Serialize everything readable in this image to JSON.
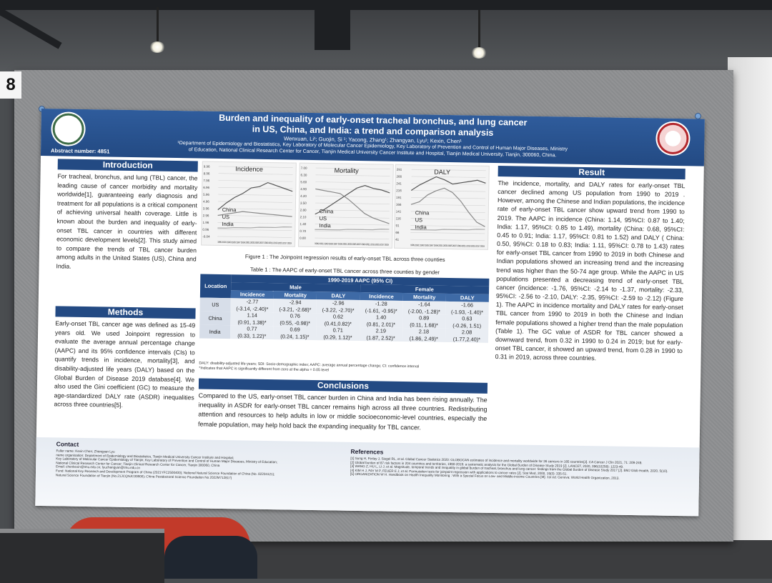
{
  "board": {
    "number": "8"
  },
  "poster": {
    "title_line1": "Burden and inequality of early-onset tracheal bronchus, and lung cancer",
    "title_line2": "in US, China, and India: a trend and comparison analysis",
    "authors": "Wenxuan, Li¹;  Guojin, Si ¹; Yacong, Zhang¹; Zhangyan, Lyu¹; Kexin, Chen¹",
    "affiliation_line1": "¹Department of Epidemiology and Biostatistics, Key Laboratory of  Molecular Cancer Epidemiology, Key Laboratory of Prevention and Control of  Human Major Diseases, Ministry",
    "affiliation_line2": "of Education, National Clinical Research Center for Cancer, Tianjin Medical University Cancer Institute and Hospital, Tianjin Medical University, Tianjin, 300060, China.",
    "abstract_number": "Abstract number: 4851",
    "introduction": {
      "heading": "Introduction",
      "text": "For tracheal, bronchus, and lung (TBL) cancer, the leading cause of cancer morbidity and mortality worldwide[1], guaranteeing early diagnosis and treatment for all populations is a critical component of achieving universal health coverage. Little is known about the burden and inequality of early-onset TBL cancer in countries with different economic development levels[2]. This study aimed to compare the trends of TBL cancer burden among adults in the United States (US), China and India."
    },
    "methods": {
      "heading": "Methods",
      "text": "Early-onset TBL cancer age was defined as 15-49 years old. We used Joinpoint regression to evaluate the average annual percentage change (AAPC) and its 95% confidence intervals (CIs) to quantify trends in incidence, mortality[3], and disability-adjusted life years (DALY) based on the Global Burden of Disease 2019 database[4]. We also used the Gini coefficient (GC) to measure the age-standardized DALY rate (ASDR) inequalities across three countries[5]."
    },
    "figure": {
      "panels": [
        {
          "title": "Incidence",
          "yticks": [
            "9.96",
            "8.96",
            "7.96",
            "6.96",
            "5.96",
            "4.96",
            "3.96",
            "2.96",
            "1.96",
            "0.96",
            "-0.04"
          ],
          "legend": [
            "China",
            "US",
            "India"
          ]
        },
        {
          "title": "Mortality",
          "yticks": [
            "7.00",
            "6.30",
            "5.60",
            "4.90",
            "4.20",
            "3.50",
            "2.80",
            "2.10",
            "1.40",
            "0.70",
            "0.00"
          ],
          "legend": [
            "China",
            "US",
            "India"
          ]
        },
        {
          "title": "DALY",
          "yticks": [
            "291",
            "266",
            "241",
            "216",
            "191",
            "166",
            "141",
            "116",
            "91",
            "66",
            "41"
          ],
          "legend": [
            "China",
            "US",
            "India"
          ]
        }
      ],
      "xticks_text": "1989 1991 1993 1995 1997 1999 2001 2003 2005 2007 2009 2011 2013 2015 2017 2019",
      "caption": "Figure 1 : The Joinpoint regression results of early-onset TBL across three counties"
    },
    "table": {
      "caption": "Table 1 : The AAPC of early-onset TBL cancer across three counties by gender",
      "location_header": "Location",
      "span_header": "1990-2019 AAPC (95% CI)",
      "male_header": "Male",
      "female_header": "Female",
      "col_headers": [
        "Incidence",
        "Mortality",
        "DALY",
        "Incidence",
        "Mortality",
        "DALY"
      ],
      "rows": [
        {
          "location": "US",
          "cells": [
            "-2.77\n(-3.14, -2.40)*",
            "-2.94\n(-3.21, -2.68)*",
            "-2.96\n(-3.22, -2.70)*",
            "-1.28\n(-1.61, -0.95)*",
            "-1.64\n(-2.00, -1.28)*",
            "-1.66\n(-1.93, -1.40)*"
          ]
        },
        {
          "location": "China",
          "cells": [
            "1.14\n(0.91, 1.38)*",
            "0.76\n(0.55, -0.98)*",
            "0.62\n(0.41,0.82)*",
            "1.40\n(0.81, 2.01)*",
            "0.89\n(0.11, 1.68)*",
            "0.63\n(-0.26, 1.51)"
          ]
        },
        {
          "location": "India",
          "cells": [
            "0.77\n(0.33, 1.22)*",
            "0.69\n(0.24, 1.15)*",
            "0.71\n(0.29, 1.12)*",
            "2.19\n(1.87, 2.52)*",
            "2.18\n(1.86, 2.49)*",
            "2.08\n(1.77,2.40)*"
          ]
        }
      ],
      "note_line1": "DALY: disability-adjusted life-years; SDI: Socio-demographic index; AAPC: average annual percentage change; CI: confidence interval",
      "note_line2": "*Indicates that AAPC is significantly different from zero at the alpha = 0.05 level"
    },
    "conclusions": {
      "heading": "Conclusions",
      "text": "Compared to the US, early-onset TBL cancer burden in China and India has been rising annually. The inequality in ASDR for early-onset TBL cancer remains high across all three countries. Redistributing attention and resources to help adults in low or middle socioeconomic-level countries, especially the female population, may help hold back the expanding inequality for TBL cancer."
    },
    "result": {
      "heading": "Result",
      "text": "The incidence, mortality, and DALY rates for early-onset TBL cancer declined among US population from 1990 to 2019 . However, among the Chinese and Indian populations, the incidence rate of early-onset TBL cancer show upward trend from 1990 to 2019. The AAPC in incidence (China: 1.14, 95%CI: 0.87 to 1.40; India: 1.17, 95%CI: 0.85 to 1.49), mortality (China: 0.68, 95%CI: 0.45 to 0.91; India: 1.17, 95%CI: 0.81 to 1.52) and DALY ( China: 0.50, 95%CI: 0.18 to 0.83; India: 1.11, 95%CI: 0.78 to 1.43) rates for early-onset TBL cancer from 1990 to 2019 in both Chinese and Indian populations showed an increasing trend and the increasing trend was higher than the 50-74 age group. While the AAPC in US populations presented a decreasing trend of early-onset TBL cancer (incidence: -1.76, 95%CI: -2.14 to -1.37, mortality: -2.33, 95%CI: -2.56 to -2.10, DALY: -2.35, 95%CI: -2.59 to -2.12) (Figure 1). The AAPC in incidence mortality and DALY rates for early-onset TBL cancer from 1990 to 2019 in both the Chinese and Indian female populations showed a higher trend than the male population (Table 1). The GC value of ASDR for TBL cancer showed a downward trend, from 0.32 in 1990 to 0.24 in 2019; but for early-onset TBL cancer, it showed an upward trend, from 0.28 in 1990 to 0.31 in 2019, across three countries."
    },
    "contact": {
      "heading": "Contact",
      "lines": [
        "Fuller name: Kexin Chen; Zhangyan Lyu",
        "name organisation: Department of Epidemiology and Biostatistics, Tianjin Medical University Cancer Institute and Hospital;",
        "Key Laboratory of Molecular Cancer Epidemiology of Tianjin; Key Laboratory of Prevention and Control of Human Major Diseases, Ministry of Education;",
        "National Clinical Research Center for Cancer; Tianjin Clinical Research Center for Cancer, Tianjin 300060, China",
        "Email: chenkexin@tmu.edu.cn; lyuzhangyan@tmu.edu.cn",
        "Fund: National Key Research and Development Program of China (2021YFC2500400); National Natural Science Foundation of China (No. 82204121);",
        "Natural Science Foundation of Tianjin (No.21JCQNJC00800); China Postdoctoral Science Foundation No 2022M712817)"
      ]
    },
    "references": {
      "heading": "References",
      "lines": [
        "[1] Sung H, Ferlay J, Siegel RL, et al. Global Cancer Statistics 2020: GLOBOCAN estimates of incidence and mortality worldwide for 36 cancers in 185 countries[J]. CA Cancer J Clin 2021, 71: 209-249.",
        "[2] Global burden of 87 risk factors in 204 countries and territories, 1990-2019: a systematic analysis for the Global Burden of Disease Study 2019 [J]. LANCET, 2020, 396(10258): 1223-49.",
        "[3] WANG Z, HU L, LI J, et al. Magnitude, temporal trends and inequality in global burden of tracheal, bronchus and lung cancer: findings from the Global Burden of Disease Study 2017 [J]. BMJ Glob Health, 2020, 5(10).",
        "[4] KIM H J, FAY M P, FEUER E J, et al. Permutation tests for joinpoint regression with applications to cancer rates [J]. Stat Med, 2000, 19(3): 335-51.",
        "[5] ORGANIZATION W H. Handbook on Health Inequality Monitoring : With a Special Focus on Low- and Middle-income Countries [M]. 1st ed. Geneva: World Health Organization, 2013."
      ]
    }
  }
}
